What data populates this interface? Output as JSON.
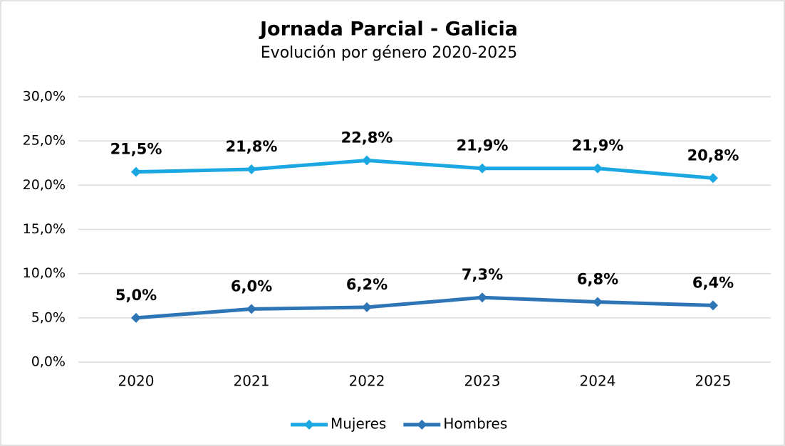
{
  "chart_data": {
    "type": "line",
    "title": "Jornada Parcial - Galicia",
    "subtitle": "Evolución por género 2020-2025",
    "categories": [
      "2020",
      "2021",
      "2022",
      "2023",
      "2024",
      "2025"
    ],
    "series": [
      {
        "name": "Mujeres",
        "color": "#1ba7e1",
        "values": [
          21.5,
          21.8,
          22.8,
          21.9,
          21.9,
          20.8
        ],
        "value_labels": [
          "21,5%",
          "21,8%",
          "22,8%",
          "21,9%",
          "21,9%",
          "20,8%"
        ]
      },
      {
        "name": "Hombres",
        "color": "#2e75b6",
        "values": [
          5.0,
          6.0,
          6.2,
          7.3,
          6.8,
          6.4
        ],
        "value_labels": [
          "5,0%",
          "6,0%",
          "6,2%",
          "7,3%",
          "6,8%",
          "6,4%"
        ]
      }
    ],
    "ylim": [
      0,
      30
    ],
    "yticks": [
      {
        "value": 0,
        "label": "0,0%"
      },
      {
        "value": 5,
        "label": "5,0%"
      },
      {
        "value": 10,
        "label": "10,0%"
      },
      {
        "value": 15,
        "label": "15,0%"
      },
      {
        "value": 20,
        "label": "20,0%"
      },
      {
        "value": 25,
        "label": "25,0%"
      },
      {
        "value": 30,
        "label": "30,0%"
      }
    ],
    "grid": true,
    "legend": "bottom"
  }
}
